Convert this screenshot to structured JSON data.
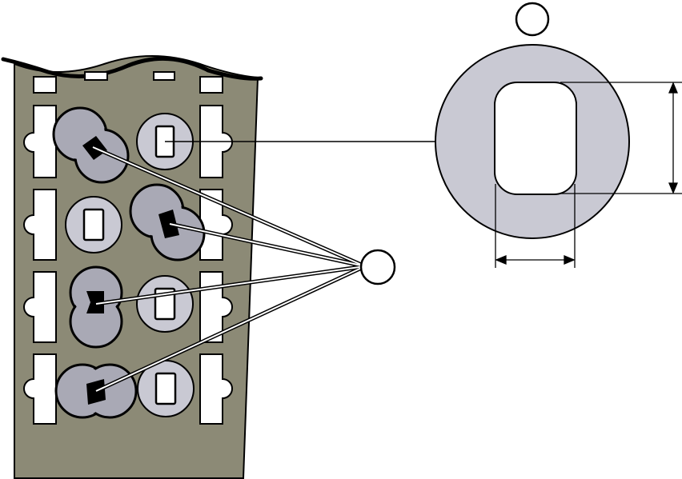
{
  "figure": {
    "callouts": [
      {
        "id": "washer-callout",
        "label": ""
      },
      {
        "id": "rotated-washers-callout",
        "label": ""
      }
    ],
    "colors": {
      "panel": "#8c8a76",
      "washer_fill": "#c9c9d3",
      "washer_dark": "#a9a9b5",
      "slot": "#ffffff",
      "ink": "#000000"
    },
    "washer_states": [
      "rotated",
      "upright",
      "upright",
      "rotated",
      "rotated",
      "upright",
      "rotated",
      "upright"
    ]
  }
}
